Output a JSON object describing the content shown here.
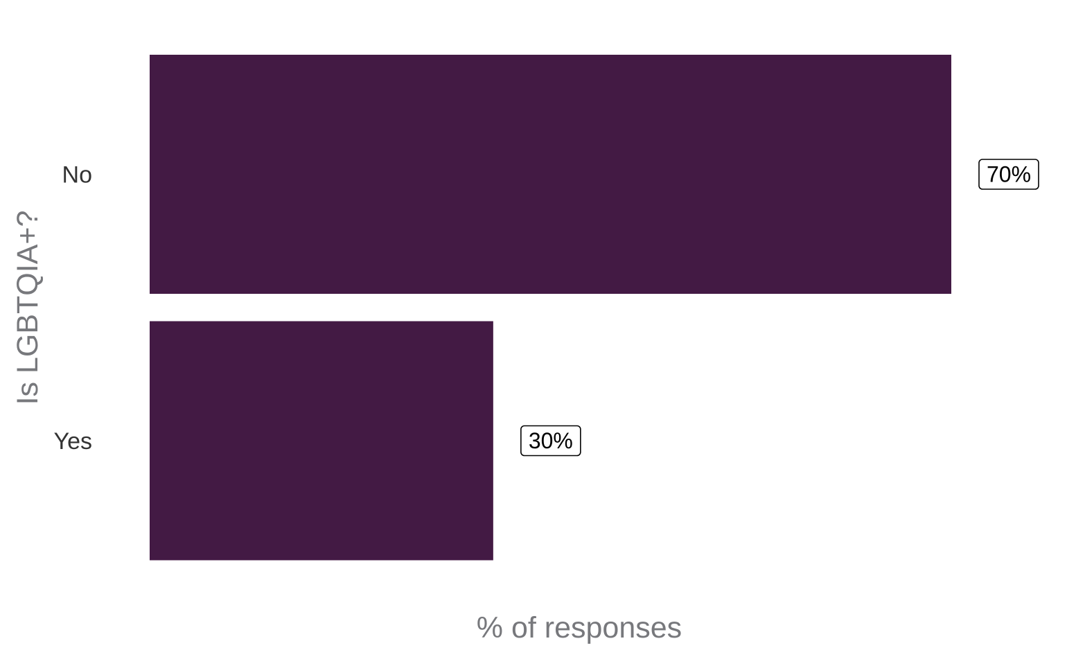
{
  "chart_data": {
    "type": "bar",
    "orientation": "horizontal",
    "categories": [
      "No",
      "Yes"
    ],
    "values": [
      70,
      30
    ],
    "data_labels": [
      "70%",
      "30%"
    ],
    "xlabel": "% of responses",
    "ylabel": "Is LGBTQIA+?",
    "xlim": [
      0,
      70
    ],
    "grid": false,
    "bar_color": "#431a44",
    "axis_title_color": "#77787c",
    "tick_label_color": "#333333"
  }
}
